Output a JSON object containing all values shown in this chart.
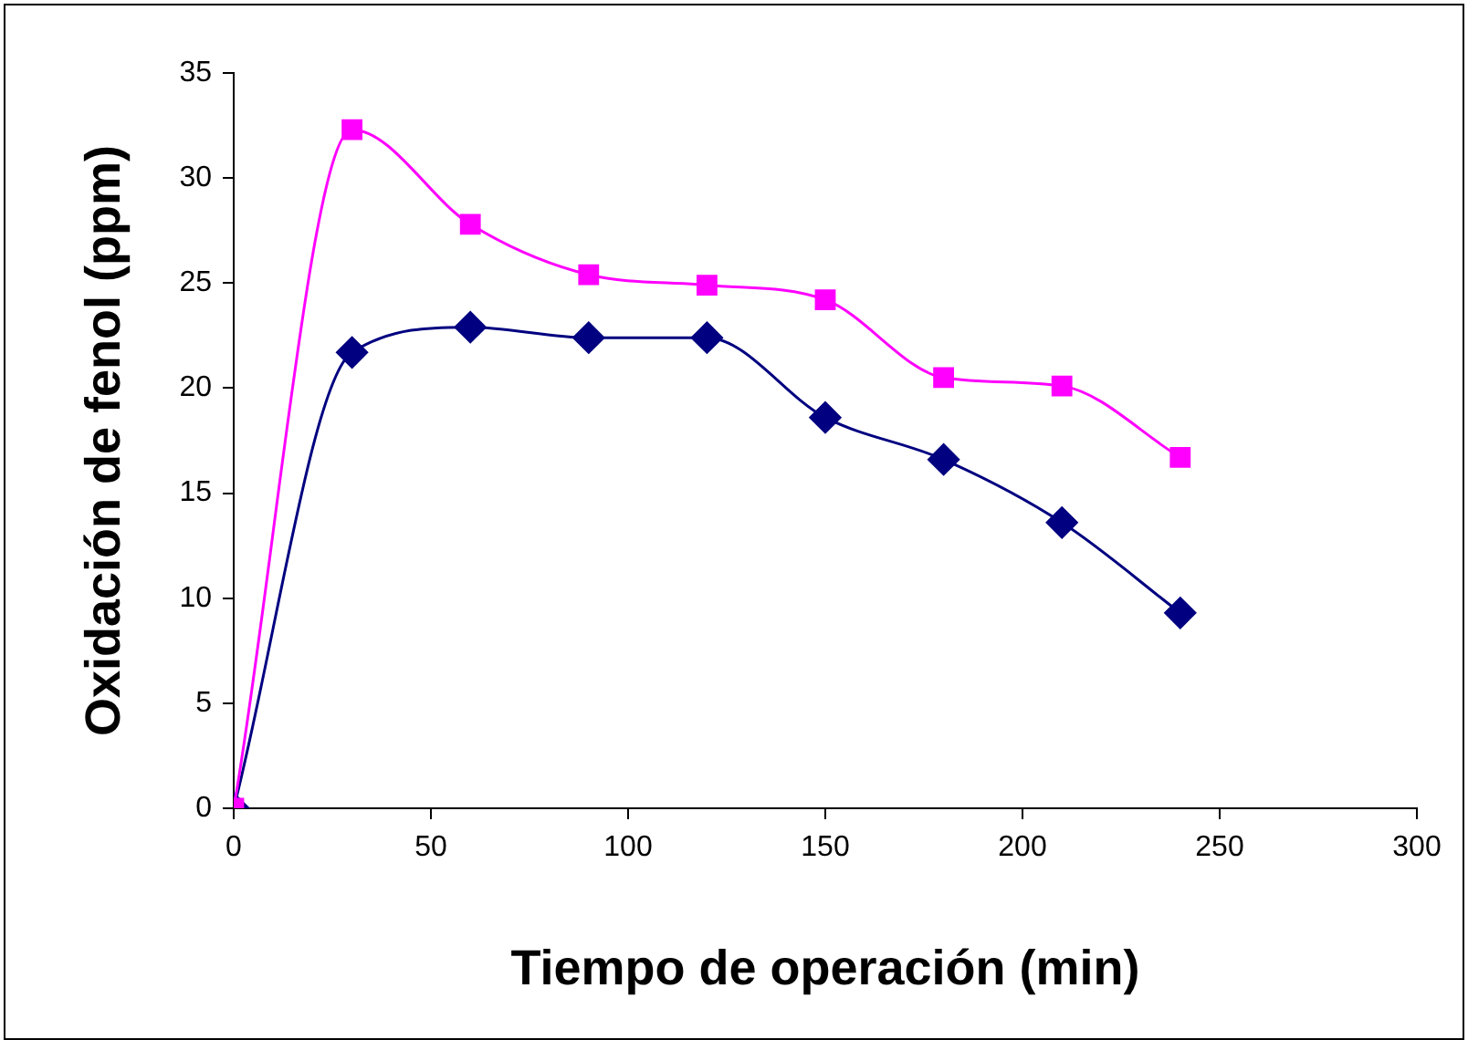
{
  "chart_data": {
    "type": "line",
    "xlabel": "Tiempo de operación (min)",
    "ylabel": "Oxidación de fenol (ppm)",
    "x": [
      0,
      30,
      60,
      90,
      120,
      150,
      180,
      210,
      240
    ],
    "series": [
      {
        "color": "#ff00ff",
        "marker": "square",
        "values": [
          0,
          32.3,
          27.8,
          25.4,
          24.9,
          24.2,
          20.5,
          20.1,
          16.7
        ]
      },
      {
        "color": "#000080",
        "marker": "diamond",
        "values": [
          0,
          21.7,
          22.9,
          22.4,
          22.4,
          18.6,
          16.6,
          13.6,
          9.3
        ]
      }
    ],
    "xlim": [
      0,
      300
    ],
    "xticks": [
      0,
      50,
      100,
      150,
      200,
      250,
      300
    ],
    "ylim": [
      0,
      35
    ],
    "yticks": [
      0,
      5,
      10,
      15,
      20,
      25,
      30,
      35
    ],
    "grid": false,
    "legend": false
  }
}
